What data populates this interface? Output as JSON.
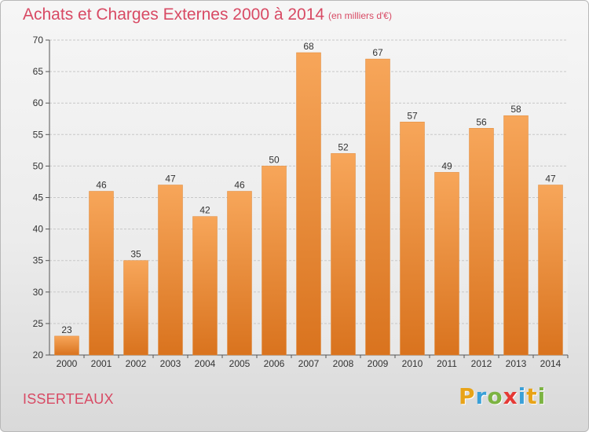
{
  "header": {
    "title": "Achats et Charges Externes 2000 à 2014",
    "subtitle": "(en milliers d'€)"
  },
  "footer": {
    "commune": "ISSERTEAUX",
    "logo_letters": [
      "P",
      "r",
      "o",
      "x",
      "i",
      "t",
      "i"
    ],
    "logo_colors": [
      "#e8a317",
      "#3aa0d8",
      "#7cb342",
      "#e53935",
      "#3aa0d8",
      "#e8a317",
      "#7cb342"
    ]
  },
  "chart_data": {
    "type": "bar",
    "title": "Achats et Charges Externes 2000 à 2014",
    "subtitle": "(en milliers d'€)",
    "xlabel": "",
    "ylabel": "",
    "categories": [
      "2000",
      "2001",
      "2002",
      "2003",
      "2004",
      "2005",
      "2006",
      "2007",
      "2008",
      "2009",
      "2010",
      "2011",
      "2012",
      "2013",
      "2014"
    ],
    "values": [
      23,
      46,
      35,
      47,
      42,
      46,
      50,
      68,
      52,
      67,
      57,
      49,
      56,
      58,
      47
    ],
    "ylim": [
      20,
      70
    ],
    "yticks": [
      20,
      25,
      30,
      35,
      40,
      45,
      50,
      55,
      60,
      65,
      70
    ],
    "grid": true,
    "bar_color_top": "#f7a65a",
    "bar_color_bottom": "#d9731e"
  }
}
